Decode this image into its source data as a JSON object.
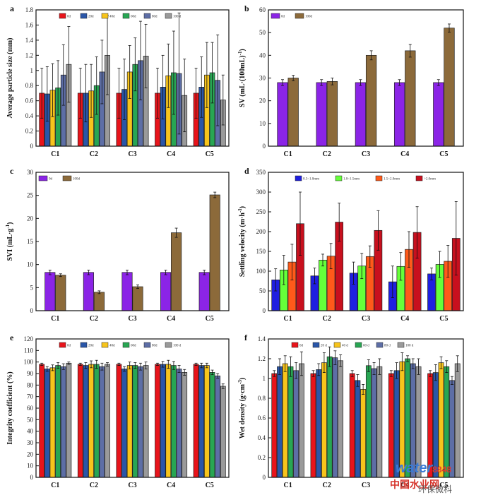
{
  "watermark": {
    "brand": "water",
    "brand_num": "8848",
    "site": "中国水业网",
    "wechat": "环保微科"
  },
  "chart_data": [
    {
      "panel": "a",
      "type": "bar",
      "ylabel": "Average particle size (mm)",
      "ylim": [
        0,
        1.8
      ],
      "yticks": [
        0,
        0.2,
        0.4,
        0.6,
        0.8,
        1.0,
        1.2,
        1.4,
        1.6,
        1.8
      ],
      "categories": [
        "C1",
        "C2",
        "C3",
        "C4",
        "C5"
      ],
      "legend_position": "top",
      "series": [
        {
          "name": "0d",
          "color": "#e8141b",
          "values": [
            0.7,
            0.7,
            0.7,
            0.7,
            0.7
          ],
          "errors": [
            0.33,
            0.33,
            0.33,
            0.33,
            0.33
          ]
        },
        {
          "name": "20d",
          "color": "#2a56a8",
          "values": [
            0.69,
            0.7,
            0.75,
            0.78,
            0.78
          ],
          "errors": [
            0.36,
            0.38,
            0.4,
            0.42,
            0.4
          ]
        },
        {
          "name": "40d",
          "color": "#f7c41c",
          "values": [
            0.74,
            0.73,
            0.98,
            0.93,
            0.94
          ],
          "errors": [
            0.35,
            0.35,
            0.35,
            0.42,
            0.43
          ]
        },
        {
          "name": "60d",
          "color": "#28a653",
          "values": [
            0.77,
            0.8,
            1.08,
            0.97,
            0.97
          ],
          "errors": [
            0.36,
            0.38,
            0.35,
            0.55,
            0.4
          ]
        },
        {
          "name": "80d",
          "color": "#5d6ea6",
          "values": [
            0.94,
            0.98,
            1.13,
            0.96,
            0.87
          ],
          "errors": [
            0.4,
            0.42,
            0.52,
            0.8,
            0.6
          ]
        },
        {
          "name": "100 d",
          "color": "#9a9a9a",
          "values": [
            1.08,
            1.2,
            1.19,
            0.67,
            0.61
          ],
          "errors": [
            0.5,
            0.52,
            0.42,
            0.48,
            0.33
          ]
        }
      ]
    },
    {
      "panel": "b",
      "type": "bar",
      "ylabel": "SV (mL·(100mL)",
      "ylabel_sup": "-1",
      "ylabel_end": ")",
      "ylim": [
        0,
        60
      ],
      "yticks": [
        0,
        10,
        20,
        30,
        40,
        50,
        60
      ],
      "categories": [
        "C1",
        "C2",
        "C3",
        "C4",
        "C5"
      ],
      "legend_position": "top-left",
      "series": [
        {
          "name": "0d",
          "color": "#8b24e6",
          "values": [
            28,
            28,
            28,
            28,
            28
          ],
          "errors": [
            1.3,
            1.3,
            1.3,
            1.3,
            1.3
          ]
        },
        {
          "name": "100d",
          "color": "#8c6a3a",
          "values": [
            30,
            28.5,
            40,
            42,
            52
          ],
          "errors": [
            1.2,
            1.5,
            2.0,
            2.8,
            1.8
          ]
        }
      ]
    },
    {
      "panel": "c",
      "type": "bar",
      "ylabel": "SVI (mL·g",
      "ylabel_sup": "-1",
      "ylabel_end": ")",
      "ylim": [
        0,
        30
      ],
      "yticks": [
        0,
        5,
        10,
        15,
        20,
        25,
        30
      ],
      "categories": [
        "C1",
        "C2",
        "C3",
        "C4",
        "C5"
      ],
      "legend_position": "top-left",
      "series": [
        {
          "name": "0d",
          "color": "#8b24e6",
          "values": [
            8.3,
            8.3,
            8.3,
            8.3,
            8.3
          ],
          "errors": [
            0.5,
            0.5,
            0.5,
            0.5,
            0.5
          ]
        },
        {
          "name": "100d",
          "color": "#8c6a3a",
          "values": [
            7.7,
            4.0,
            5.2,
            16.9,
            25.1
          ],
          "errors": [
            0.3,
            0.3,
            0.4,
            1.0,
            0.6
          ]
        }
      ]
    },
    {
      "panel": "d",
      "type": "bar",
      "ylabel": "Settling velocity (m·h",
      "ylabel_sup": "-1",
      "ylabel_end": ")",
      "ylim": [
        0,
        350
      ],
      "yticks": [
        0,
        50,
        100,
        150,
        200,
        250,
        300,
        350
      ],
      "categories": [
        "C1",
        "C2",
        "C3",
        "C4",
        "C5"
      ],
      "legend_position": "top",
      "series": [
        {
          "name": "0.5~1.0mm",
          "color": "#1f1fe0",
          "values": [
            78,
            88,
            95,
            73,
            93
          ],
          "errors": [
            28,
            20,
            28,
            40,
            15
          ]
        },
        {
          "name": "1.0~1.5mm",
          "color": "#66ff3a",
          "values": [
            103,
            128,
            113,
            112,
            117
          ],
          "errors": [
            37,
            15,
            32,
            35,
            33
          ]
        },
        {
          "name": "1.5~2.0mm",
          "color": "#ff5a1a",
          "values": [
            123,
            138,
            137,
            155,
            125
          ],
          "errors": [
            45,
            32,
            27,
            45,
            40
          ]
        },
        {
          "name": ">2.0mm",
          "color": "#c8101e",
          "values": [
            220,
            224,
            203,
            198,
            183
          ],
          "errors": [
            80,
            48,
            50,
            65,
            93
          ]
        }
      ]
    },
    {
      "panel": "e",
      "type": "bar",
      "ylabel": "Integrity coefficient (%)",
      "ylim": [
        0,
        120
      ],
      "yticks": [
        0,
        10,
        20,
        30,
        40,
        50,
        60,
        70,
        80,
        90,
        100,
        110,
        120
      ],
      "categories": [
        "C1",
        "C2",
        "C3",
        "C4",
        "C5"
      ],
      "legend_position": "top",
      "series": [
        {
          "name": "0d",
          "color": "#e8141b",
          "values": [
            98,
            98,
            98,
            98,
            98
          ],
          "errors": [
            1.0,
            1.0,
            1.0,
            1.0,
            1.0
          ]
        },
        {
          "name": "20d",
          "color": "#2a56a8",
          "values": [
            94,
            97,
            94,
            98,
            97
          ],
          "errors": [
            2.0,
            2.5,
            2.0,
            2.5,
            2.0
          ]
        },
        {
          "name": "40d",
          "color": "#f7c41c",
          "values": [
            95,
            98,
            97,
            98,
            97
          ],
          "errors": [
            2.5,
            3.0,
            3.0,
            3.5,
            2.0
          ]
        },
        {
          "name": "60d",
          "color": "#28a653",
          "values": [
            97,
            98,
            97,
            97,
            91
          ],
          "errors": [
            2.5,
            3.5,
            2.5,
            3.5,
            2.0
          ]
        },
        {
          "name": "80d",
          "color": "#5d6ea6",
          "values": [
            96,
            96,
            96,
            94,
            88
          ],
          "errors": [
            2.5,
            3.0,
            3.0,
            3.0,
            2.0
          ]
        },
        {
          "name": "100 d",
          "color": "#9a9a9a",
          "values": [
            99,
            98,
            97,
            91,
            79
          ],
          "errors": [
            1.0,
            1.5,
            3.0,
            2.5,
            2.0
          ]
        }
      ]
    },
    {
      "panel": "f",
      "type": "bar",
      "ylabel": "Wet density (g·cm",
      "ylabel_sup": "-3",
      "ylabel_end": ")",
      "ylim": [
        0,
        1.4
      ],
      "yticks": [
        0,
        0.2,
        0.4,
        0.6,
        0.8,
        1.0,
        1.2,
        1.4
      ],
      "categories": [
        "C1",
        "C2",
        "C3",
        "C4",
        "C5"
      ],
      "legend_position": "top",
      "series": [
        {
          "name": "0d",
          "color": "#e8141b",
          "values": [
            1.05,
            1.05,
            1.05,
            1.05,
            1.05
          ],
          "errors": [
            0.03,
            0.03,
            0.03,
            0.03,
            0.03
          ]
        },
        {
          "name": "20 d",
          "color": "#2a56a8",
          "values": [
            1.12,
            1.09,
            0.98,
            1.08,
            1.06
          ],
          "errors": [
            0.08,
            0.06,
            0.06,
            0.08,
            0.08
          ]
        },
        {
          "name": "40 d",
          "color": "#f7c41c",
          "values": [
            1.15,
            1.16,
            0.89,
            1.17,
            1.16
          ],
          "errors": [
            0.08,
            0.1,
            0.05,
            0.09,
            0.06
          ]
        },
        {
          "name": "60 d",
          "color": "#28a653",
          "values": [
            1.12,
            1.22,
            1.13,
            1.2,
            1.12
          ],
          "errors": [
            0.1,
            0.1,
            0.06,
            0.03,
            0.06
          ]
        },
        {
          "name": "80 d",
          "color": "#5d6ea6",
          "values": [
            1.08,
            1.21,
            1.1,
            1.15,
            0.98
          ],
          "errors": [
            0.08,
            0.07,
            0.06,
            0.05,
            0.04
          ]
        },
        {
          "name": "100 d",
          "color": "#9a9a9a",
          "values": [
            1.15,
            1.18,
            1.12,
            1.12,
            1.15
          ],
          "errors": [
            0.12,
            0.06,
            0.08,
            0.08,
            0.08
          ]
        }
      ]
    }
  ]
}
